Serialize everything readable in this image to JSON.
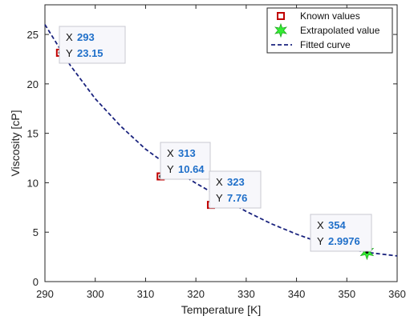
{
  "chart_data": {
    "type": "line",
    "xlabel": "Temperature [K]",
    "ylabel": "Viscosity [cP]",
    "xlim": [
      290,
      360
    ],
    "ylim": [
      0,
      28
    ],
    "xticks": [
      290,
      300,
      310,
      320,
      330,
      340,
      350,
      360
    ],
    "yticks": [
      0,
      5,
      10,
      15,
      20,
      25
    ],
    "grid": false,
    "legend_position": "top-right",
    "series": [
      {
        "name": "Known values",
        "kind": "scatter",
        "marker": "square",
        "color": "#c00000",
        "points": [
          {
            "x": 293,
            "y": 23.15
          },
          {
            "x": 313,
            "y": 10.64
          },
          {
            "x": 323,
            "y": 7.76
          }
        ]
      },
      {
        "name": "Extrapolated value",
        "kind": "scatter",
        "marker": "star",
        "color": "#33ee33",
        "points": [
          {
            "x": 354,
            "y": 2.9976
          }
        ]
      },
      {
        "name": "Fitted curve",
        "kind": "line",
        "style": "dashed",
        "color": "#1a237e",
        "x": [
          290,
          295,
          300,
          305,
          310,
          315,
          320,
          325,
          330,
          335,
          340,
          345,
          350,
          355,
          360
        ],
        "y": [
          26.0,
          21.9,
          18.5,
          15.75,
          13.4,
          11.55,
          9.95,
          8.5,
          7.1,
          5.85,
          4.8,
          3.9,
          3.3,
          2.9,
          2.6
        ]
      }
    ],
    "datatips": [
      {
        "x_label": "X",
        "y_label": "Y",
        "x": "293",
        "y": "23.15"
      },
      {
        "x_label": "X",
        "y_label": "Y",
        "x": "313",
        "y": "10.64"
      },
      {
        "x_label": "X",
        "y_label": "Y",
        "x": "323",
        "y": "7.76"
      },
      {
        "x_label": "X",
        "y_label": "Y",
        "x": "354",
        "y": "2.9976"
      }
    ]
  }
}
